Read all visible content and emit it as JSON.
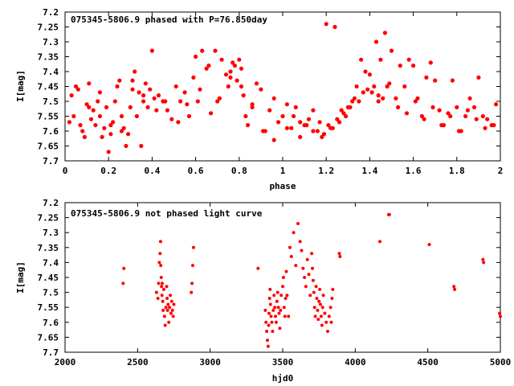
{
  "chart_data": [
    {
      "type": "scatter",
      "title": "075345-5806.9 phased with P=76.850day",
      "xlabel": "phase",
      "ylabel": "I[mag]",
      "xlim": [
        0,
        2
      ],
      "ylim": [
        7.7,
        7.2
      ],
      "y_inverted": true,
      "grid": false,
      "legend": "none",
      "x_ticks": [
        "0",
        "0.2",
        "0.4",
        "0.6",
        "0.8",
        "1",
        "1.2",
        "1.4",
        "1.6",
        "1.8",
        "2"
      ],
      "y_ticks": [
        "7.2",
        "7.25",
        "7.3",
        "7.35",
        "7.4",
        "7.45",
        "7.5",
        "7.55",
        "7.6",
        "7.65",
        "7.7"
      ],
      "marker_color": "#ff0000",
      "series": [
        {
          "x": [
            0.02,
            0.04,
            0.05,
            0.07,
            0.08,
            0.09,
            0.1,
            0.11,
            0.12,
            0.13,
            0.14,
            0.15,
            0.16,
            0.17,
            0.18,
            0.19,
            0.2,
            0.21,
            0.22,
            0.23,
            0.24,
            0.25,
            0.26,
            0.27,
            0.28,
            0.29,
            0.3,
            0.31,
            0.32,
            0.33,
            0.34,
            0.35,
            0.36,
            0.37,
            0.38,
            0.39,
            0.4,
            0.41,
            0.43,
            0.45,
            0.47,
            0.49,
            0.51,
            0.53,
            0.55,
            0.57,
            0.59,
            0.6,
            0.61,
            0.63,
            0.65,
            0.67,
            0.69,
            0.7,
            0.72,
            0.74,
            0.75,
            0.76,
            0.77,
            0.78,
            0.79,
            0.8,
            0.81,
            0.82,
            0.83,
            0.84,
            0.86,
            0.88,
            0.9,
            0.92,
            0.94,
            0.96,
            0.98,
            1.0,
            1.02,
            1.04,
            1.06,
            1.08,
            1.1,
            1.12,
            1.14,
            1.16,
            1.18,
            1.2,
            1.22,
            1.24,
            1.26,
            1.28,
            1.3,
            1.32,
            1.34,
            1.36,
            1.38,
            1.4,
            1.41,
            1.42,
            1.43,
            1.44,
            1.45,
            1.46,
            1.47,
            1.48,
            1.5,
            1.52,
            1.54,
            1.56,
            1.58,
            1.6,
            1.62,
            1.64,
            1.66,
            1.68,
            1.7,
            1.72,
            1.74,
            1.76,
            1.78,
            1.8,
            1.82,
            1.84,
            1.86,
            1.88,
            1.9,
            1.92,
            1.94,
            1.96,
            1.98,
            1.02,
            1.05,
            1.08,
            1.11,
            1.14,
            1.17,
            1.19,
            1.21,
            1.23,
            1.25,
            1.27,
            1.29,
            1.31,
            1.33,
            1.35,
            1.37,
            1.39,
            1.44,
            1.49,
            1.53,
            1.57,
            1.61,
            1.65,
            1.69,
            1.73,
            1.77,
            1.81,
            1.85,
            1.89,
            1.93,
            1.97,
            0.03,
            0.06,
            0.11,
            0.16,
            0.21,
            0.26,
            0.31,
            0.36,
            0.42,
            0.46,
            0.52,
            0.56,
            0.62,
            0.66,
            0.71,
            0.76,
            0.81,
            0.86,
            0.91,
            0.96
          ],
          "y": [
            7.57,
            7.55,
            7.45,
            7.58,
            7.6,
            7.62,
            7.51,
            7.44,
            7.56,
            7.53,
            7.58,
            7.5,
            7.47,
            7.62,
            7.59,
            7.52,
            7.67,
            7.61,
            7.57,
            7.5,
            7.45,
            7.43,
            7.55,
            7.59,
            7.65,
            7.61,
            7.52,
            7.46,
            7.4,
            7.55,
            7.47,
            7.65,
            7.5,
            7.44,
            7.52,
            7.46,
            7.33,
            7.49,
            7.48,
            7.5,
            7.53,
            7.56,
            7.45,
            7.5,
            7.47,
            7.55,
            7.42,
            7.35,
            7.5,
            7.33,
            7.39,
            7.54,
            7.33,
            7.5,
            7.36,
            7.41,
            7.45,
            7.4,
            7.37,
            7.38,
            7.43,
            7.36,
            7.39,
            7.48,
            7.55,
            7.58,
            7.51,
            7.44,
            7.46,
            7.6,
            7.53,
            7.49,
            7.57,
            7.55,
            7.51,
            7.59,
            7.52,
            7.57,
            7.58,
            7.56,
            7.53,
            7.6,
            7.62,
            7.24,
            7.59,
            7.25,
            7.57,
            7.54,
            7.52,
            7.5,
            7.45,
            7.36,
            7.4,
            7.41,
            7.47,
            7.45,
            7.3,
            7.5,
            7.36,
            7.49,
            7.27,
            7.45,
            7.33,
            7.49,
            7.38,
            7.45,
            7.36,
            7.38,
            7.49,
            7.55,
            7.42,
            7.37,
            7.43,
            7.53,
            7.58,
            7.54,
            7.43,
            7.52,
            7.6,
            7.55,
            7.49,
            7.52,
            7.42,
            7.55,
            7.56,
            7.58,
            7.51,
            7.59,
            7.55,
            7.62,
            7.58,
            7.6,
            7.57,
            7.61,
            7.58,
            7.59,
            7.56,
            7.53,
            7.55,
            7.52,
            7.49,
            7.5,
            7.47,
            7.46,
            7.48,
            7.44,
            7.52,
            7.54,
            7.5,
            7.56,
            7.52,
            7.58,
            7.55,
            7.6,
            7.53,
            7.56,
            7.59,
            7.58,
            7.48,
            7.46,
            7.52,
            7.55,
            7.58,
            7.6,
            7.43,
            7.48,
            7.53,
            7.5,
            7.57,
            7.51,
            7.46,
            7.38,
            7.49,
            7.42,
            7.45,
            7.52,
            7.6,
            7.63
          ]
        }
      ]
    },
    {
      "type": "scatter",
      "title": "075345-5806.9 not phased light curve",
      "xlabel": "hjd0",
      "ylabel": "I[mag]",
      "xlim": [
        2000,
        5000
      ],
      "ylim": [
        7.7,
        7.2
      ],
      "y_inverted": true,
      "grid": false,
      "legend": "none",
      "x_ticks": [
        "2000",
        "2500",
        "3000",
        "3500",
        "4000",
        "4500",
        "5000"
      ],
      "y_ticks": [
        "7.2",
        "7.25",
        "7.3",
        "7.35",
        "7.4",
        "7.45",
        "7.5",
        "7.55",
        "7.6",
        "7.65",
        "7.7"
      ],
      "marker_color": "#ff0000",
      "series": [
        {
          "x": [
            2400,
            2405,
            2630,
            2640,
            2645,
            2650,
            2655,
            2658,
            2660,
            2663,
            2665,
            2668,
            2670,
            2673,
            2676,
            2680,
            2685,
            2690,
            2695,
            2700,
            2703,
            2706,
            2710,
            2715,
            2720,
            2725,
            2730,
            2735,
            2740,
            2745,
            2750,
            2870,
            2875,
            2880,
            2885,
            3330,
            3380,
            3385,
            3390,
            3395,
            3400,
            3403,
            3406,
            3410,
            3413,
            3416,
            3420,
            3425,
            3430,
            3435,
            3440,
            3445,
            3450,
            3455,
            3460,
            3465,
            3470,
            3475,
            3480,
            3485,
            3490,
            3500,
            3505,
            3510,
            3515,
            3520,
            3525,
            3530,
            3540,
            3550,
            3560,
            3575,
            3590,
            3605,
            3620,
            3630,
            3640,
            3650,
            3660,
            3670,
            3680,
            3690,
            3700,
            3705,
            3710,
            3715,
            3720,
            3725,
            3730,
            3735,
            3740,
            3745,
            3750,
            3755,
            3760,
            3765,
            3770,
            3775,
            3780,
            3790,
            3800,
            3810,
            3820,
            3830,
            3835,
            3840,
            3845,
            3890,
            3895,
            4170,
            4230,
            4235,
            4510,
            4680,
            4685,
            4880,
            4885,
            4995,
            5000
          ],
          "y": [
            7.47,
            7.42,
            7.5,
            7.52,
            7.47,
            7.4,
            7.37,
            7.33,
            7.41,
            7.45,
            7.48,
            7.51,
            7.47,
            7.53,
            7.56,
            7.49,
            7.58,
            7.61,
            7.55,
            7.48,
            7.52,
            7.56,
            7.54,
            7.6,
            7.55,
            7.51,
            7.57,
            7.53,
            7.56,
            7.58,
            7.54,
            7.5,
            7.47,
            7.41,
            7.35,
            7.42,
            7.56,
            7.6,
            7.63,
            7.66,
            7.68,
            7.61,
            7.57,
            7.52,
            7.49,
            7.54,
            7.58,
            7.6,
            7.63,
            7.56,
            7.51,
            7.55,
            7.58,
            7.6,
            7.53,
            7.5,
            7.55,
            7.57,
            7.62,
            7.56,
            7.51,
            7.48,
            7.45,
            7.55,
            7.58,
            7.52,
            7.43,
            7.51,
            7.58,
            7.35,
            7.38,
            7.3,
            7.41,
            7.27,
            7.33,
            7.36,
            7.42,
            7.45,
            7.48,
            7.39,
            7.44,
            7.51,
            7.37,
            7.42,
            7.46,
            7.5,
            7.55,
            7.58,
            7.48,
            7.52,
            7.56,
            7.59,
            7.53,
            7.49,
            7.54,
            7.58,
            7.61,
            7.55,
            7.51,
            7.57,
            7.6,
            7.63,
            7.58,
            7.55,
            7.6,
            7.52,
            7.49,
            7.37,
            7.38,
            7.33,
            7.24,
            7.24,
            7.34,
            7.48,
            7.49,
            7.39,
            7.4,
            7.57,
            7.58
          ]
        }
      ]
    }
  ]
}
